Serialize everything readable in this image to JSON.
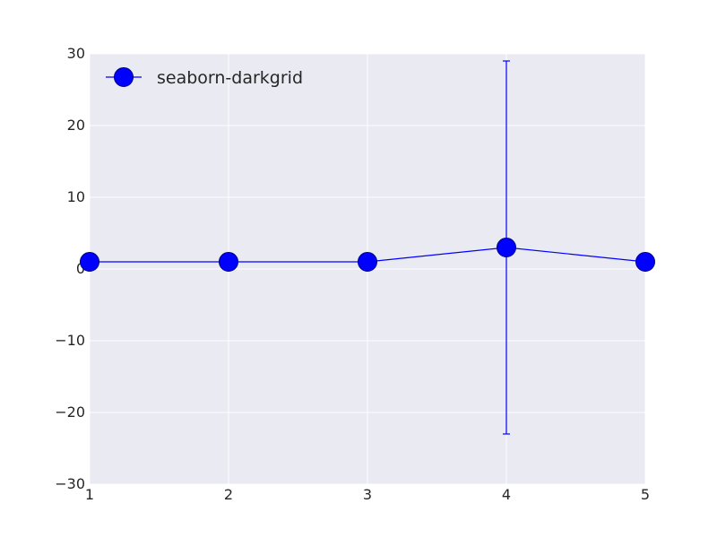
{
  "chart_data": {
    "type": "line",
    "x": [
      1,
      2,
      3,
      4,
      5
    ],
    "series": [
      {
        "name": "seaborn-darkgrid",
        "values": [
          1,
          1,
          1,
          3,
          1
        ],
        "yerr_low": [
          null,
          null,
          null,
          -23,
          null
        ],
        "yerr_high": [
          null,
          null,
          null,
          29,
          null
        ]
      }
    ],
    "xlim": [
      1,
      5
    ],
    "ylim": [
      -30,
      30
    ],
    "x_ticks": [
      "1",
      "2",
      "3",
      "4",
      "5"
    ],
    "y_ticks": [
      "30",
      "20",
      "10",
      "0",
      "−10",
      "−20",
      "−30"
    ],
    "title": "",
    "xlabel": "",
    "ylabel": "",
    "grid": true,
    "legend_position": "top-left",
    "colors": {
      "plot_background": "#eaeaf2",
      "grid": "#ffffff",
      "series": "#0000ff",
      "marker_edge": "#000080",
      "text": "#262626"
    }
  }
}
